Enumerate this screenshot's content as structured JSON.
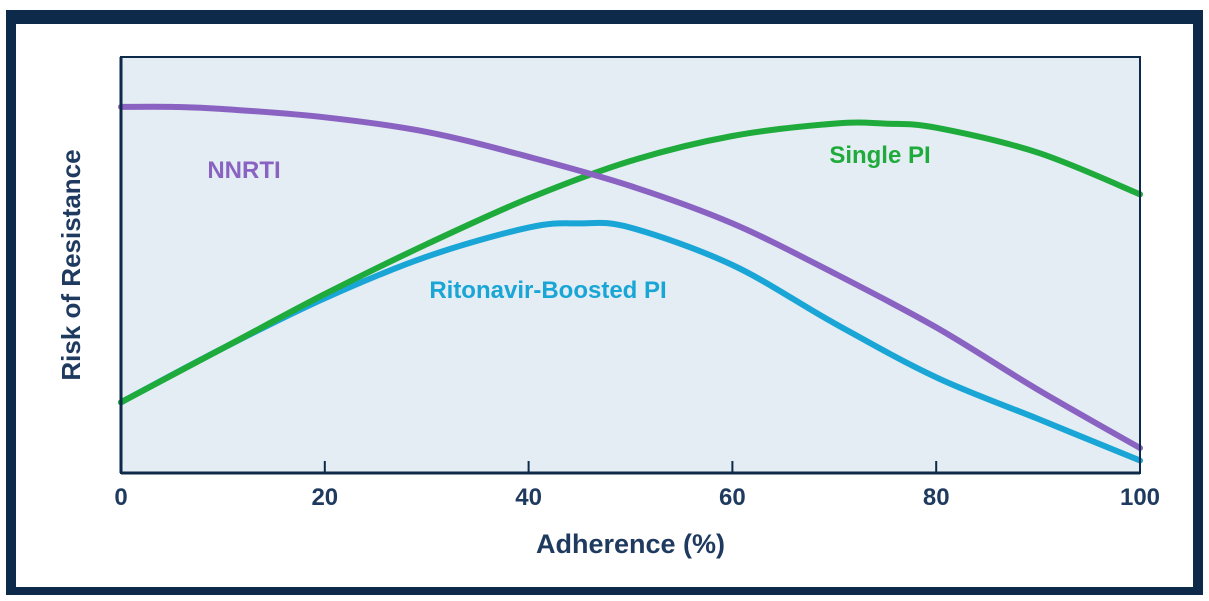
{
  "chart_data": {
    "type": "line",
    "title": "",
    "xlabel": "Adherence (%)",
    "ylabel": "Risk of Resistance",
    "xlim": [
      0,
      100
    ],
    "ylim": [
      0,
      100
    ],
    "x_ticks": [
      0,
      20,
      40,
      60,
      80,
      100
    ],
    "grid": false,
    "legend": "inline labels on curves",
    "colors": {
      "plot_background": "#e3edf3",
      "frame": "#0d2a4a",
      "axis_text": "#1f3a5f"
    },
    "series": [
      {
        "name": "NNRTI",
        "color": "#8a63c2",
        "x": [
          0,
          5,
          10,
          20,
          30,
          40,
          50,
          60,
          70,
          80,
          90,
          100
        ],
        "y": [
          88,
          88,
          87.5,
          85.5,
          82,
          76,
          69,
          60,
          48,
          35,
          20,
          6
        ]
      },
      {
        "name": "Single PI",
        "color": "#1fab3c",
        "x": [
          0,
          10,
          20,
          30,
          40,
          50,
          60,
          70,
          75,
          80,
          90,
          100
        ],
        "y": [
          17,
          30,
          43,
          55,
          66,
          75,
          81,
          84,
          84,
          83,
          77,
          67
        ]
      },
      {
        "name": "Ritonavir-Boosted PI",
        "color": "#19a5d6",
        "x": [
          0,
          10,
          20,
          30,
          40,
          45,
          50,
          60,
          70,
          80,
          90,
          100
        ],
        "y": [
          17,
          30,
          42,
          52,
          59,
          60,
          59,
          50,
          36,
          23,
          13,
          3
        ]
      }
    ]
  }
}
